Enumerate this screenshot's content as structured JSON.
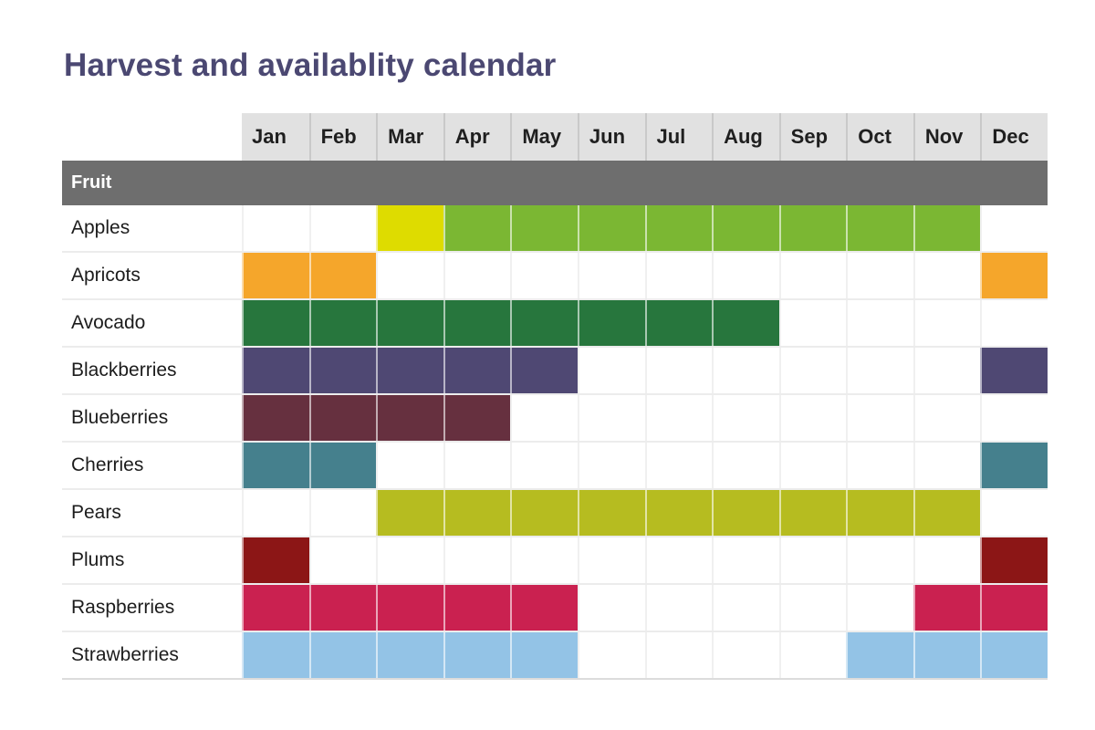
{
  "title": {
    "text": "Harvest and availablity calendar",
    "color": "#4b4872"
  },
  "calendar": {
    "months": [
      "Jan",
      "Feb",
      "Mar",
      "Apr",
      "May",
      "Jun",
      "Jul",
      "Aug",
      "Sep",
      "Oct",
      "Nov",
      "Dec"
    ],
    "section_header": "Fruit",
    "rows": [
      {
        "fruit": "Apples",
        "cells": [
          null,
          null,
          "#dedc00",
          "#7bb733",
          "#7bb733",
          "#7bb733",
          "#7bb733",
          "#7bb733",
          "#7bb733",
          "#7bb733",
          "#7bb733",
          null
        ]
      },
      {
        "fruit": "Apricots",
        "cells": [
          "#f5a62b",
          "#f5a62b",
          null,
          null,
          null,
          null,
          null,
          null,
          null,
          null,
          null,
          "#f5a62b"
        ]
      },
      {
        "fruit": "Avocado",
        "cells": [
          "#27763d",
          "#27763d",
          "#27763d",
          "#27763d",
          "#27763d",
          "#27763d",
          "#27763d",
          "#27763d",
          null,
          null,
          null,
          null
        ]
      },
      {
        "fruit": "Blackberries",
        "cells": [
          "#4f4873",
          "#4f4873",
          "#4f4873",
          "#4f4873",
          "#4f4873",
          null,
          null,
          null,
          null,
          null,
          null,
          "#4f4873"
        ]
      },
      {
        "fruit": "Blueberries",
        "cells": [
          "#66303f",
          "#66303f",
          "#66303f",
          "#66303f",
          null,
          null,
          null,
          null,
          null,
          null,
          null,
          null
        ]
      },
      {
        "fruit": "Cherries",
        "cells": [
          "#45808d",
          "#45808d",
          null,
          null,
          null,
          null,
          null,
          null,
          null,
          null,
          null,
          "#45808d"
        ]
      },
      {
        "fruit": "Pears",
        "cells": [
          null,
          null,
          "#b6bc20",
          "#b6bc20",
          "#b6bc20",
          "#b6bc20",
          "#b6bc20",
          "#b6bc20",
          "#b6bc20",
          "#b6bc20",
          "#b6bc20",
          null
        ]
      },
      {
        "fruit": "Plums",
        "cells": [
          "#8c1616",
          null,
          null,
          null,
          null,
          null,
          null,
          null,
          null,
          null,
          null,
          "#8c1616"
        ]
      },
      {
        "fruit": "Raspberries",
        "cells": [
          "#ca2150",
          "#ca2150",
          "#ca2150",
          "#ca2150",
          "#ca2150",
          null,
          null,
          null,
          null,
          null,
          "#ca2150",
          "#ca2150"
        ]
      },
      {
        "fruit": "Strawberries",
        "cells": [
          "#93c3e6",
          "#93c3e6",
          "#93c3e6",
          "#93c3e6",
          "#93c3e6",
          null,
          null,
          null,
          null,
          "#93c3e6",
          "#93c3e6",
          "#93c3e6"
        ]
      }
    ],
    "header_bg": "#e1e1e1",
    "section_header_bg": "#6e6e6e"
  },
  "chart_data": {
    "type": "heatmap",
    "title": "Harvest and availablity calendar",
    "x": [
      "Jan",
      "Feb",
      "Mar",
      "Apr",
      "May",
      "Jun",
      "Jul",
      "Aug",
      "Sep",
      "Oct",
      "Nov",
      "Dec"
    ],
    "categories": [
      "Apples",
      "Apricots",
      "Avocado",
      "Blackberries",
      "Blueberries",
      "Cherries",
      "Pears",
      "Plums",
      "Raspberries",
      "Strawberries"
    ],
    "series": [
      {
        "name": "Apples",
        "available_months": [
          "Mar",
          "Apr",
          "May",
          "Jun",
          "Jul",
          "Aug",
          "Sep",
          "Oct",
          "Nov"
        ],
        "colors": {
          "Mar": "#dedc00",
          "Apr_to_Nov": "#7bb733"
        }
      },
      {
        "name": "Apricots",
        "available_months": [
          "Jan",
          "Feb",
          "Dec"
        ],
        "colors": {
          "all": "#f5a62b"
        }
      },
      {
        "name": "Avocado",
        "available_months": [
          "Jan",
          "Feb",
          "Mar",
          "Apr",
          "May",
          "Jun",
          "Jul",
          "Aug"
        ],
        "colors": {
          "all": "#27763d"
        }
      },
      {
        "name": "Blackberries",
        "available_months": [
          "Jan",
          "Feb",
          "Mar",
          "Apr",
          "May",
          "Dec"
        ],
        "colors": {
          "all": "#4f4873"
        }
      },
      {
        "name": "Blueberries",
        "available_months": [
          "Jan",
          "Feb",
          "Mar",
          "Apr"
        ],
        "colors": {
          "all": "#66303f"
        }
      },
      {
        "name": "Cherries",
        "available_months": [
          "Jan",
          "Feb",
          "Dec"
        ],
        "colors": {
          "all": "#45808d"
        }
      },
      {
        "name": "Pears",
        "available_months": [
          "Mar",
          "Apr",
          "May",
          "Jun",
          "Jul",
          "Aug",
          "Sep",
          "Oct",
          "Nov"
        ],
        "colors": {
          "all": "#b6bc20"
        }
      },
      {
        "name": "Plums",
        "available_months": [
          "Jan",
          "Dec"
        ],
        "colors": {
          "all": "#8c1616"
        }
      },
      {
        "name": "Raspberries",
        "available_months": [
          "Jan",
          "Feb",
          "Mar",
          "Apr",
          "May",
          "Nov",
          "Dec"
        ],
        "colors": {
          "all": "#ca2150"
        }
      },
      {
        "name": "Strawberries",
        "available_months": [
          "Jan",
          "Feb",
          "Mar",
          "Apr",
          "May",
          "Oct",
          "Nov",
          "Dec"
        ],
        "colors": {
          "all": "#93c3e6"
        }
      }
    ],
    "legend_position": "none",
    "grid": true
  }
}
